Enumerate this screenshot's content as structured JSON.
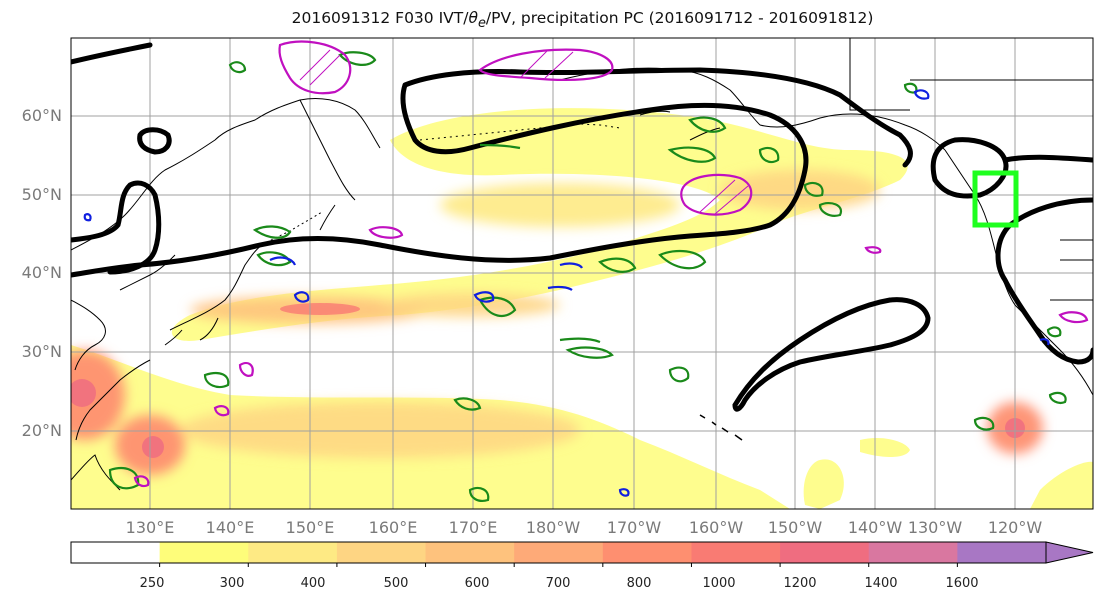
{
  "title": {
    "prefix": "2016091312 F030 IVT/",
    "theta": "θ",
    "theta_sub": "e",
    "suffix": "/PV, precipitation PC (2016091712 - 2016091812)"
  },
  "lat_labels": [
    "60°N",
    "50°N",
    "40°N",
    "30°N",
    "20°N"
  ],
  "lon_labels": [
    "130°E",
    "140°E",
    "150°E",
    "160°E",
    "170°E",
    "180°W",
    "170°W",
    "160°W",
    "150°W",
    "140°W",
    "130°W",
    "120°W"
  ],
  "colorbar": {
    "ticks": [
      "250",
      "300",
      "400",
      "500",
      "600",
      "700",
      "800",
      "1000",
      "1200",
      "1400",
      "1600"
    ],
    "colors": [
      "#ffffff",
      "#fefd7a",
      "#feea84",
      "#fed583",
      "#fec27d",
      "#feaa78",
      "#fe8f70",
      "#f97b73",
      "#ef6d80",
      "#d977a0",
      "#a877c4"
    ],
    "extend": "max"
  },
  "contour_colors": {
    "ivt_black": "#000000",
    "theta_green": "#1a8a1a",
    "pv_magenta": "#c010c0",
    "pv_blue": "#1020e0",
    "region_box": "#1fff1f"
  }
}
